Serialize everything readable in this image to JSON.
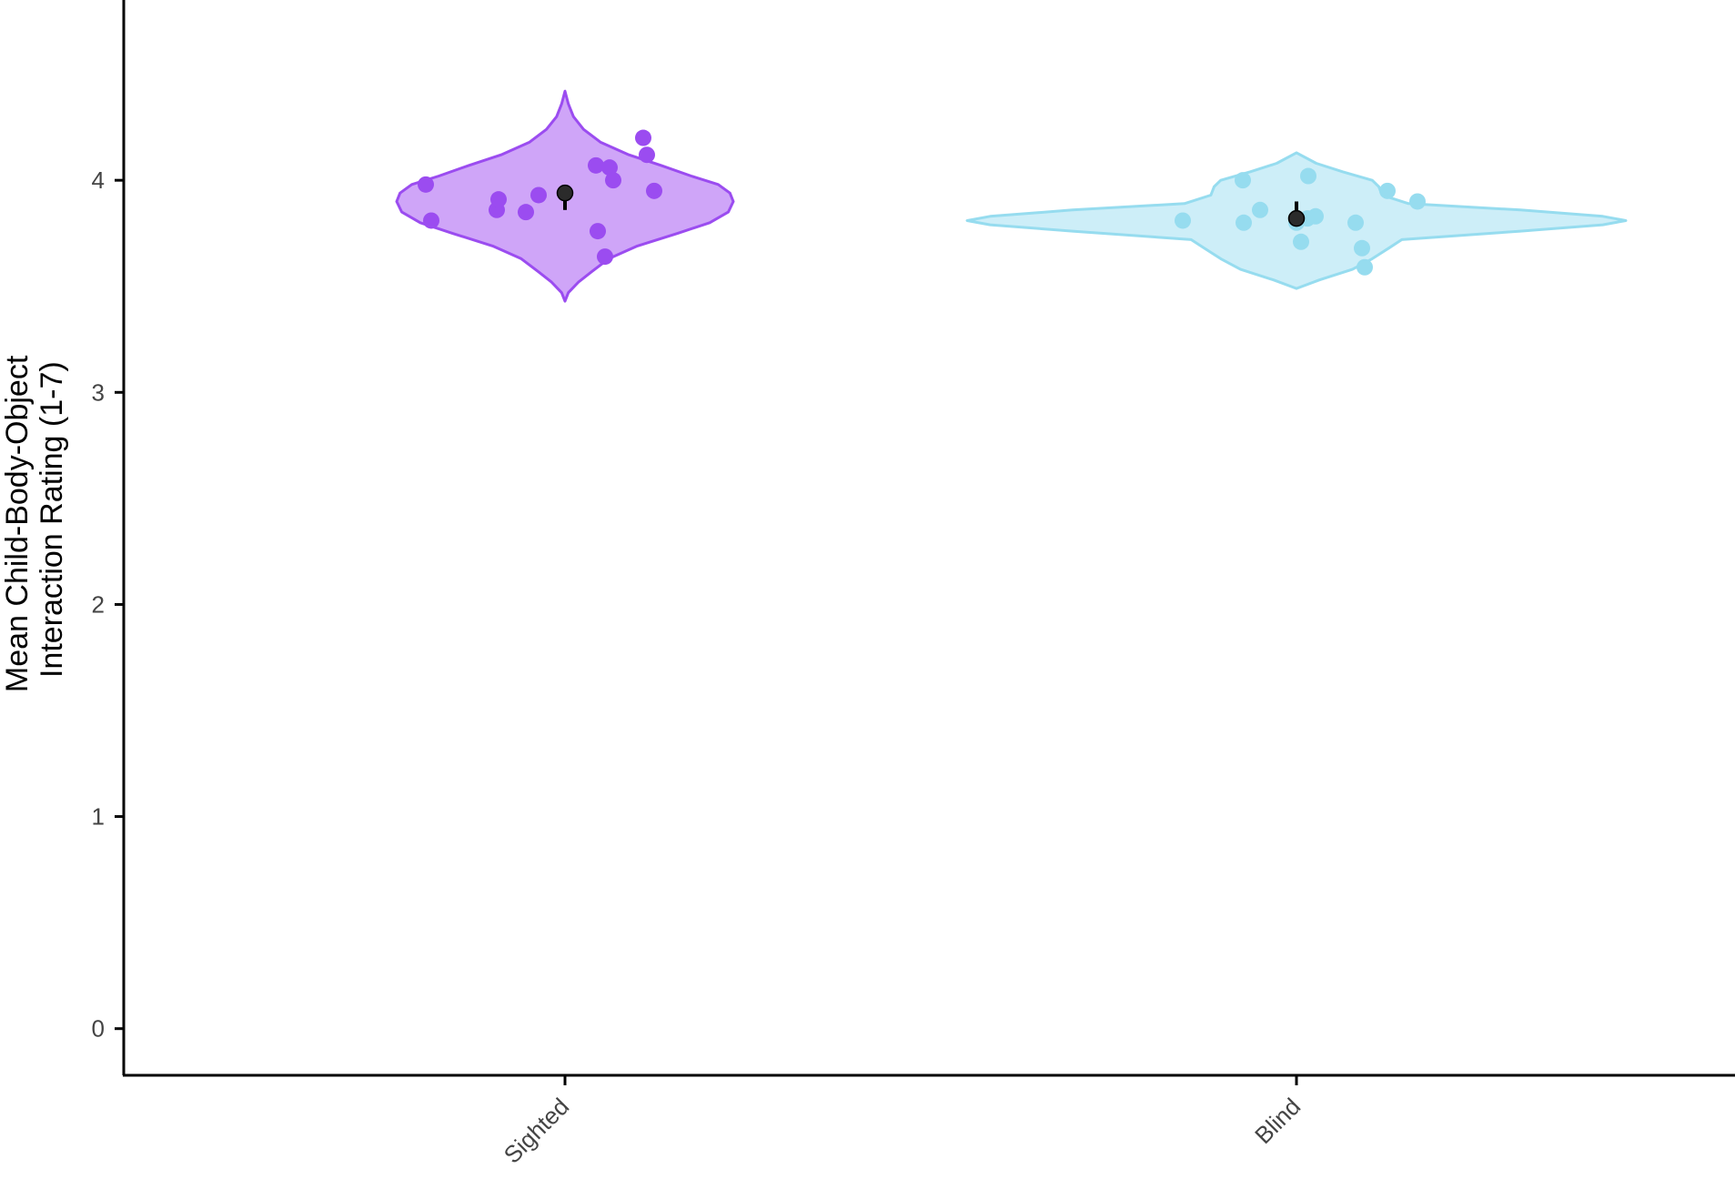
{
  "chart_data": {
    "type": "violin",
    "title": "",
    "xlabel": "",
    "ylabel": [
      "Mean Child-Body-Object",
      "Interaction Rating (1-7)"
    ],
    "ylim": [
      -0.22,
      4.85
    ],
    "yticks": [
      0,
      1,
      2,
      3,
      4
    ],
    "grid": false,
    "legend": "none",
    "categories": [
      "Sighted",
      "Blind"
    ],
    "series": [
      {
        "category": "Sighted",
        "fill": "#cfa5f8",
        "stroke": "#9b4cf0",
        "point_color": "#9b4cf0",
        "mean": 3.94,
        "error": [
          3.86,
          3.94
        ],
        "points": [
          3.98,
          3.81,
          3.86,
          3.91,
          3.85,
          3.93,
          4.07,
          4.06,
          4.0,
          3.76,
          3.64,
          4.2,
          4.12,
          3.95
        ],
        "density": [
          [
            3.43,
            0.0
          ],
          [
            3.47,
            0.02
          ],
          [
            3.52,
            0.08
          ],
          [
            3.57,
            0.16
          ],
          [
            3.63,
            0.26
          ],
          [
            3.69,
            0.43
          ],
          [
            3.75,
            0.67
          ],
          [
            3.8,
            0.86
          ],
          [
            3.85,
            0.97
          ],
          [
            3.9,
            1.0
          ],
          [
            3.94,
            0.98
          ],
          [
            3.98,
            0.91
          ],
          [
            4.02,
            0.75
          ],
          [
            4.07,
            0.57
          ],
          [
            4.12,
            0.38
          ],
          [
            4.18,
            0.21
          ],
          [
            4.24,
            0.11
          ],
          [
            4.3,
            0.05
          ],
          [
            4.36,
            0.02
          ],
          [
            4.42,
            0.0
          ]
        ]
      },
      {
        "category": "Blind",
        "fill": "#cdeef8",
        "stroke": "#96dcef",
        "point_color": "#96dcef",
        "mean": 3.82,
        "error": [
          3.82,
          3.9
        ],
        "points": [
          3.81,
          3.8,
          3.86,
          4.0,
          3.71,
          3.8,
          3.82,
          3.83,
          3.8,
          4.02,
          3.68,
          3.59,
          3.95,
          3.9
        ],
        "density": [
          [
            3.49,
            0.0
          ],
          [
            3.53,
            0.07
          ],
          [
            3.58,
            0.17
          ],
          [
            3.63,
            0.23
          ],
          [
            3.68,
            0.28
          ],
          [
            3.72,
            0.32
          ],
          [
            3.76,
            0.68
          ],
          [
            3.79,
            0.93
          ],
          [
            3.81,
            1.0
          ],
          [
            3.83,
            0.93
          ],
          [
            3.86,
            0.68
          ],
          [
            3.89,
            0.34
          ],
          [
            3.93,
            0.26
          ],
          [
            3.97,
            0.25
          ],
          [
            4.0,
            0.23
          ],
          [
            4.04,
            0.14
          ],
          [
            4.08,
            0.06
          ],
          [
            4.13,
            0.0
          ]
        ]
      }
    ]
  }
}
